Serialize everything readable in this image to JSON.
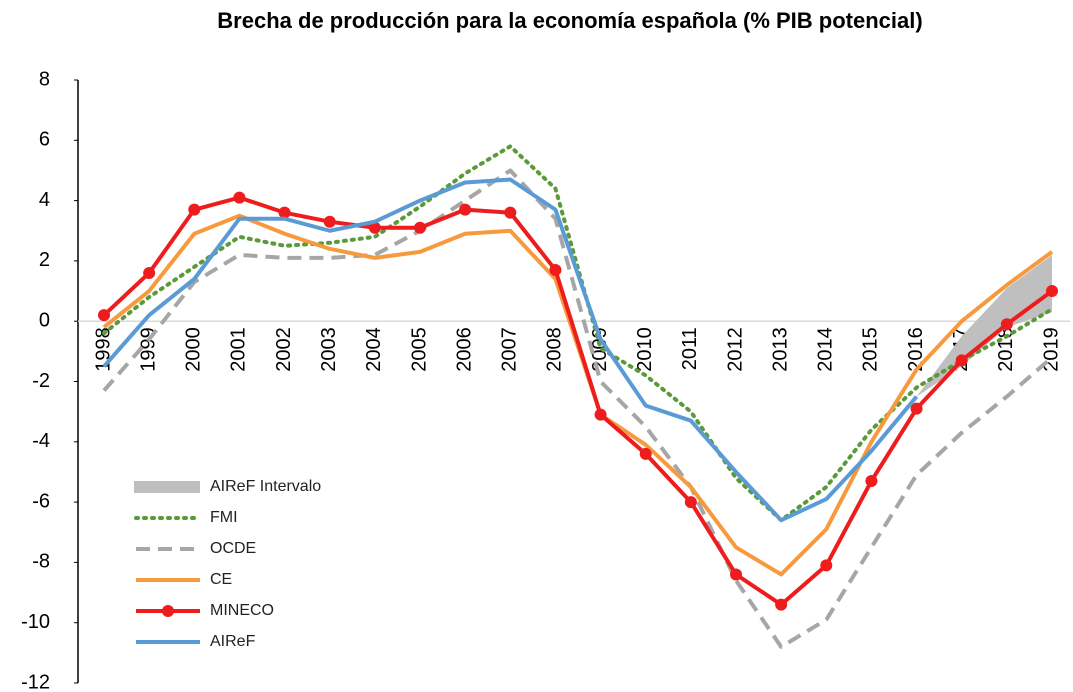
{
  "chart_data": {
    "type": "line",
    "title": "Brecha de producción para la economía española (% PIB potencial)",
    "categories": [
      "1998",
      "1999",
      "2000",
      "2001",
      "2002",
      "2003",
      "2004",
      "2005",
      "2006",
      "2007",
      "2008",
      "2009",
      "2010",
      "2011",
      "2012",
      "2013",
      "2014",
      "2015",
      "2016",
      "2017",
      "2018",
      "2019"
    ],
    "ylim": [
      -12,
      8
    ],
    "yticks": [
      -12,
      -10,
      -8,
      -6,
      -4,
      -2,
      0,
      2,
      4,
      6,
      8
    ],
    "series": [
      {
        "name": "AIReF Intervalo",
        "color": "#bfbfbf",
        "kind": "band",
        "lower": [
          null,
          null,
          null,
          null,
          null,
          null,
          null,
          null,
          null,
          null,
          null,
          null,
          null,
          null,
          null,
          null,
          null,
          null,
          -2.5,
          -1.5,
          -0.2,
          0.3
        ],
        "upper": [
          null,
          null,
          null,
          null,
          null,
          null,
          null,
          null,
          null,
          null,
          null,
          null,
          null,
          null,
          null,
          null,
          null,
          null,
          -2.5,
          -0.5,
          1.1,
          2.2
        ]
      },
      {
        "name": "FMI",
        "color": "#5b9a3a",
        "style": "dotted",
        "values": [
          -0.4,
          0.8,
          1.8,
          2.8,
          2.5,
          2.6,
          2.8,
          3.8,
          4.9,
          5.8,
          4.4,
          -0.9,
          -1.8,
          -3.0,
          -5.2,
          -6.6,
          -5.5,
          -3.6,
          -2.2,
          -1.3,
          -0.5,
          0.4
        ]
      },
      {
        "name": "OCDE",
        "color": "#a6a6a6",
        "style": "dashed",
        "values": [
          -2.3,
          -0.6,
          1.3,
          2.2,
          2.1,
          2.1,
          2.2,
          3.0,
          4.0,
          5.0,
          3.4,
          -2.0,
          -3.5,
          -5.5,
          -8.6,
          -10.8,
          -9.9,
          -7.5,
          -5.1,
          -3.7,
          -2.5,
          -1.2
        ]
      },
      {
        "name": "CE",
        "color": "#f79a3e",
        "style": "solid",
        "values": [
          -0.2,
          1.0,
          2.9,
          3.5,
          2.9,
          2.4,
          2.1,
          2.3,
          2.9,
          3.0,
          1.4,
          -3.1,
          -4.1,
          -5.5,
          -7.5,
          -8.4,
          -6.9,
          -4.0,
          -1.6,
          0.0,
          1.2,
          2.3
        ]
      },
      {
        "name": "MINECO",
        "color": "#ee1c1c",
        "style": "solid",
        "markers": true,
        "values": [
          0.2,
          1.6,
          3.7,
          4.1,
          3.6,
          3.3,
          3.1,
          3.1,
          3.7,
          3.6,
          1.7,
          -3.1,
          -4.4,
          -6.0,
          -8.4,
          -9.4,
          -8.1,
          -5.3,
          -2.9,
          -1.3,
          -0.1,
          1.0
        ]
      },
      {
        "name": "AIReF",
        "color": "#5b9bd5",
        "style": "solid",
        "values": [
          -1.5,
          0.2,
          1.4,
          3.4,
          3.4,
          3.0,
          3.3,
          4.0,
          4.6,
          4.7,
          3.7,
          -0.6,
          -2.8,
          -3.3,
          -5.0,
          -6.6,
          -5.9,
          -4.3,
          -2.5,
          null,
          null,
          null
        ]
      }
    ]
  }
}
